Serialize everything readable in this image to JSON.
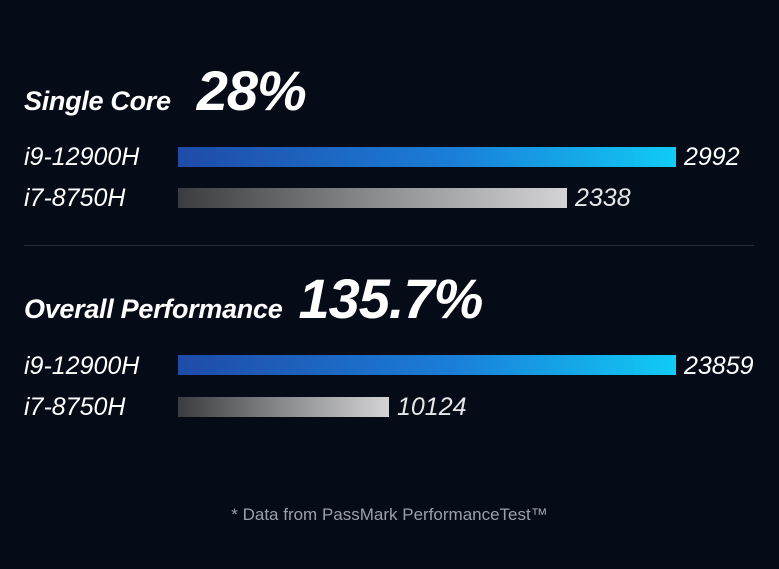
{
  "chart_data": [
    {
      "type": "bar",
      "title": "Single Core",
      "highlight": "28%",
      "categories": [
        "i9-12900H",
        "i7-8750H"
      ],
      "values": [
        2992,
        2338
      ],
      "value_labels": [
        "2992",
        "2338"
      ],
      "colors": [
        "#11cbf5",
        "#d4d4d6"
      ]
    },
    {
      "type": "bar",
      "title": "Overall Performance",
      "highlight": "135.7%",
      "categories": [
        "i9-12900H",
        "i7-8750H"
      ],
      "values": [
        23859,
        10124
      ],
      "value_labels": [
        "23859",
        "10124"
      ],
      "colors": [
        "#11cbf5",
        "#d4d4d6"
      ]
    }
  ],
  "footnote": "* Data from PassMark PerformanceTest™"
}
